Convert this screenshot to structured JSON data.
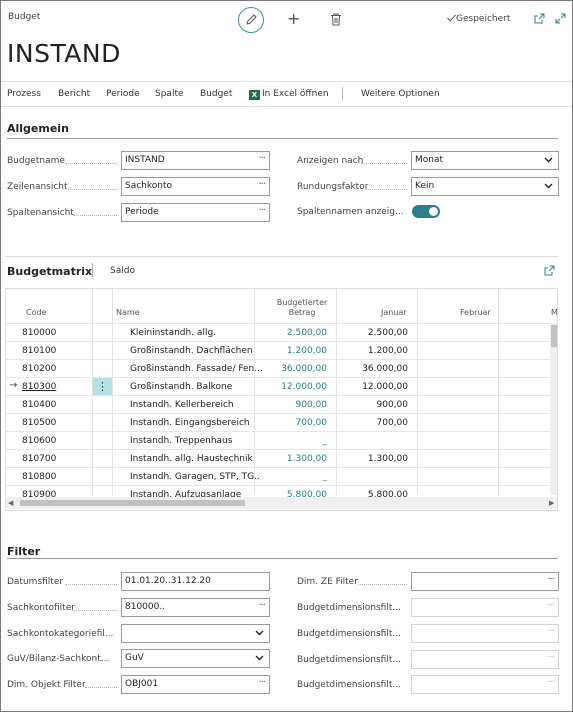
{
  "header": {
    "breadcrumb": "Budget",
    "status": "Gespeichert",
    "title": "INSTAND"
  },
  "actions": [
    "Prozess",
    "Bericht",
    "Periode",
    "Spalte",
    "Budget",
    "In Excel öffnen",
    "Weitere Optionen"
  ],
  "allgemein": {
    "title": "Allgemein",
    "budgetname_label": "Budgetname",
    "budgetname_value": "INSTAND",
    "zeilenansicht_label": "Zeilenansicht",
    "zeilenansicht_value": "Sachkonto",
    "spaltenansicht_label": "Spaltenansicht",
    "spaltenansicht_value": "Periode",
    "anzeigen_label": "Anzeigen nach",
    "anzeigen_value": "Monat",
    "rundung_label": "Rundungsfaktor",
    "rundung_value": "Kein",
    "spaltennamen_label": "Spaltennamen anzeig...",
    "spaltennamen_on": true
  },
  "budgetmatrix": {
    "title": "Budgetmatrix",
    "tab": "Saldo",
    "columns": {
      "code": "Code",
      "name": "Name",
      "budget_line1": "Budgetierter",
      "budget_line2": "Betrag",
      "januar": "Januar",
      "februar": "Februar",
      "more": "M"
    },
    "rows": [
      {
        "code": "810000",
        "name": "Kleininstandh. allg.",
        "budget": "2.500,00",
        "januar": "2.500,00"
      },
      {
        "code": "810100",
        "name": "Großinstandh. Dachflächen",
        "budget": "1.200,00",
        "januar": "1.200,00"
      },
      {
        "code": "810200",
        "name": "Großinstandh. Fassade/ Fen...",
        "budget": "36.000,00",
        "januar": "36.000,00"
      },
      {
        "code": "810300",
        "name": "Großinstandh. Balkone",
        "budget": "12.000,00",
        "januar": "12.000,00"
      },
      {
        "code": "810400",
        "name": "Instandh. Kellerbereich",
        "budget": "900,00",
        "januar": "900,00"
      },
      {
        "code": "810500",
        "name": "Instandh. Eingangsbereich",
        "budget": "700,00",
        "januar": "700,00"
      },
      {
        "code": "810600",
        "name": "Instandh. Treppenhaus",
        "budget": "_",
        "januar": ""
      },
      {
        "code": "810700",
        "name": "Instandh. allg. Haustechnik",
        "budget": "1.300,00",
        "januar": "1.300,00"
      },
      {
        "code": "810800",
        "name": "Instandh. Garagen, STP, TG..",
        "budget": "_",
        "januar": ""
      },
      {
        "code": "810900",
        "name": "Instandh. Aufzugsanlage",
        "budget": "5.800,00",
        "januar": "5.800,00"
      }
    ]
  },
  "filter": {
    "title": "Filter",
    "datum_label": "Datumsfilter",
    "datum_value": "01.01.20..31.12.20",
    "sachkonto_label": "Sachkontofilter",
    "sachkonto_value": "810000..",
    "kategorie_label": "Sachkontokategoriefil...",
    "kategorie_value": "",
    "guv_label": "GuV/Bilanz-Sachkont...",
    "guv_value": "GuV",
    "objekt_label": "Dim. Objekt Filter",
    "objekt_value": "OBJ001",
    "ze_label": "Dim. ZE Filter",
    "budgetdim1_label": "Budgetdimensionsfilt...",
    "budgetdim2_label": "Budgetdimensionsfilt...",
    "budgetdim3_label": "Budgetdimensionsfilt...",
    "budgetdim4_label": "Budgetdimensionsfilt..."
  }
}
